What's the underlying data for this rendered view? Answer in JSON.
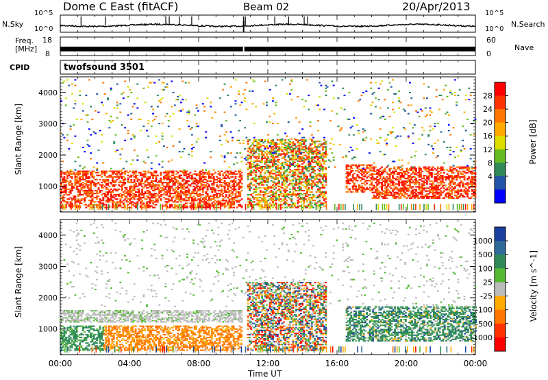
{
  "header": {
    "title": "Dome C East (fitACF)",
    "beam": "Beam 02",
    "date": "20/Apr/2013"
  },
  "noise_panel": {
    "left_label": "N.Sky",
    "left_ticks": [
      "10^5",
      "10^0"
    ],
    "right_label": "N.Search",
    "right_ticks": [
      "10^5",
      "10^0"
    ]
  },
  "freq_panel": {
    "left_label_line1": "Freq.",
    "left_label_line2": "[MHz]",
    "left_ticks": [
      "18",
      "8"
    ],
    "right_label": "Nave",
    "right_ticks": [
      "60",
      "0"
    ]
  },
  "cpid_panel": {
    "label": "CPID",
    "program": "twofsound 3501"
  },
  "x_axis": {
    "label": "Time UT",
    "ticks": [
      "00:00",
      "04:00",
      "08:00",
      "12:00",
      "16:00",
      "20:00",
      "00:00"
    ]
  },
  "chart_data": [
    {
      "type": "heatmap",
      "title": "Power",
      "ylabel": "Slant Range [km]",
      "xlabel": "",
      "ylim": [
        180,
        4500
      ],
      "xlim_hours": [
        0,
        24
      ],
      "y_ticks": [
        "4000",
        "3000",
        "2000",
        "1000"
      ],
      "colorbar": {
        "label": "Power [dB]",
        "ticks": [
          "28",
          "24",
          "20",
          "16",
          "12",
          "8",
          "4"
        ],
        "colors": [
          "#ff0000",
          "#ff3300",
          "#ff7700",
          "#ffaa00",
          "#dddd00",
          "#66bb22",
          "#2e8b57",
          "#2255aa",
          "#0000ff"
        ]
      },
      "regions": [
        {
          "t_start": 0.0,
          "t_end": 10.5,
          "r_start": 300,
          "r_end": 1100,
          "level": "strong"
        },
        {
          "t_start": 0.0,
          "t_end": 10.5,
          "r_start": 1100,
          "r_end": 1500,
          "level": "strong"
        },
        {
          "t_start": 10.8,
          "t_end": 15.3,
          "r_start": 300,
          "r_end": 2500,
          "level": "mixed"
        },
        {
          "t_start": 16.5,
          "t_end": 18.0,
          "r_start": 800,
          "r_end": 1700,
          "level": "strong"
        },
        {
          "t_start": 18.0,
          "t_end": 24.0,
          "r_start": 600,
          "r_end": 1600,
          "level": "strong"
        },
        {
          "t_start": 0.0,
          "t_end": 24.0,
          "r_start": 1500,
          "r_end": 4400,
          "level": "weak"
        }
      ]
    },
    {
      "type": "heatmap",
      "title": "Velocity",
      "ylabel": "Slant Range [km]",
      "xlabel": "Time UT",
      "ylim": [
        180,
        4500
      ],
      "xlim_hours": [
        0,
        24
      ],
      "y_ticks": [
        "4000",
        "3000",
        "2000",
        "1000"
      ],
      "colorbar": {
        "label": "Velocity [m s^-1]",
        "ticks": [
          "1000",
          "500",
          "100",
          "25",
          "-25",
          "-100",
          "-500",
          "-1000"
        ],
        "colors": [
          "#1a3fa0",
          "#2e6b9a",
          "#2e8b57",
          "#55bb33",
          "#bbbbbb",
          "#ffaa00",
          "#ff7700",
          "#ff3300",
          "#ff0000"
        ]
      },
      "regions": [
        {
          "t_start": 0.0,
          "t_end": 2.5,
          "r_start": 300,
          "r_end": 1100,
          "level": "toward_medium"
        },
        {
          "t_start": 2.5,
          "t_end": 10.5,
          "r_start": 300,
          "r_end": 1100,
          "level": "away_medium"
        },
        {
          "t_start": 0.0,
          "t_end": 10.5,
          "r_start": 1200,
          "r_end": 1600,
          "level": "near_zero"
        },
        {
          "t_start": 10.8,
          "t_end": 15.3,
          "r_start": 300,
          "r_end": 2500,
          "level": "mixed"
        },
        {
          "t_start": 16.5,
          "t_end": 24.0,
          "r_start": 600,
          "r_end": 1700,
          "level": "toward_low"
        },
        {
          "t_start": 0.0,
          "t_end": 24.0,
          "r_start": 1700,
          "r_end": 4400,
          "level": "near_zero"
        }
      ]
    }
  ]
}
